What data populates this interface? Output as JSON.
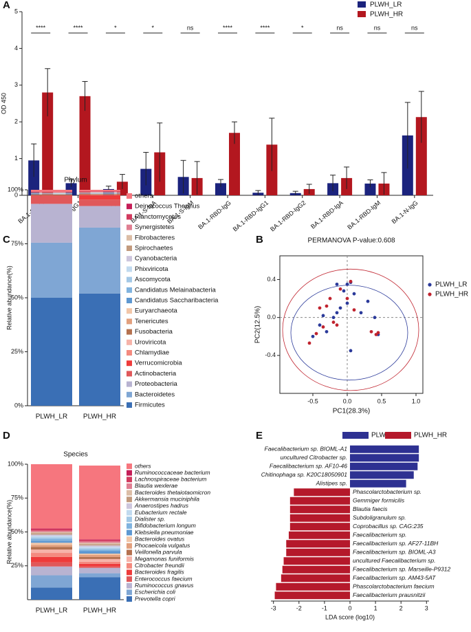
{
  "chart_data": [
    {
      "type": "bar",
      "panel": "A",
      "ylabel": "OD 450",
      "categories": [
        "BA.1-S-IgG",
        "BA.1-S-IgG1",
        "BA.1-S-IgG2",
        "BA.1-S-IgA",
        "BA.1-S-IgM",
        "BA.1-RBD-IgG",
        "BA.1-RBD-IgG1",
        "BA.1-RBD-IgG2",
        "BA.1-RBD-IgA",
        "BA.1-RBD-IgM",
        "BA.1-N-IgG"
      ],
      "ylim": [
        0,
        5
      ],
      "yticks": [
        0,
        1,
        2,
        3,
        4,
        5
      ],
      "legend": "upper right",
      "series": [
        {
          "name": "PLWH_LR",
          "color": "#1b237d",
          "values": [
            0.95,
            0.33,
            0.17,
            0.72,
            0.5,
            0.33,
            0.07,
            0.06,
            0.33,
            0.32,
            1.63
          ],
          "errors": [
            0.45,
            0.1,
            0.08,
            0.45,
            0.45,
            0.1,
            0.06,
            0.05,
            0.22,
            0.1,
            0.9
          ]
        },
        {
          "name": "PLWH_HR",
          "color": "#b3171f",
          "values": [
            2.8,
            2.7,
            0.37,
            1.17,
            0.47,
            1.7,
            1.38,
            0.17,
            0.47,
            0.32,
            2.13
          ],
          "errors": [
            0.65,
            0.4,
            0.2,
            0.8,
            0.45,
            0.3,
            0.72,
            0.13,
            0.3,
            0.3,
            0.7
          ]
        }
      ],
      "annotations": [
        "****",
        "****",
        "*",
        "*",
        "ns",
        "****",
        "****",
        "*",
        "ns",
        "ns",
        "ns"
      ]
    },
    {
      "type": "stacked_bar",
      "panel": "C",
      "title": "Phylum",
      "ylabel": "Relative abundance(%)",
      "categories": [
        "PLWH_LR",
        "PLWH_HR"
      ],
      "ylim": [
        0,
        100
      ],
      "yticks": [
        {
          "value": 0,
          "label": "0%"
        },
        {
          "value": 25,
          "label": "25%"
        },
        {
          "value": 50,
          "label": "50%"
        },
        {
          "value": 75,
          "label": "75%"
        },
        {
          "value": 100,
          "label": "100%"
        }
      ],
      "series": [
        {
          "name": "Firmicutes",
          "color": "#3a6fb5",
          "values": [
            50,
            52
          ]
        },
        {
          "name": "Bacteroidetes",
          "color": "#7fa6d4",
          "values": [
            25.5,
            30.5
          ]
        },
        {
          "name": "Proteobacteria",
          "color": "#b8b3d1",
          "values": [
            18,
            10
          ]
        },
        {
          "name": "Actinobacteria",
          "color": "#e0585a",
          "values": [
            3.5,
            3
          ]
        },
        {
          "name": "Verrucomicrobia",
          "color": "#ee3b3b",
          "values": [
            0.3,
            2
          ]
        },
        {
          "name": "Chlamydiae",
          "color": "#f48a7f",
          "values": [
            0.1,
            0.1
          ]
        },
        {
          "name": "Uroviricota",
          "color": "#f6b3a9",
          "values": [
            0.1,
            0.1
          ]
        },
        {
          "name": "Fusobacteria",
          "color": "#b5714f",
          "values": [
            0.3,
            0.3
          ]
        },
        {
          "name": "Tenericutes",
          "color": "#e2a07e",
          "values": [
            0.1,
            0.1
          ]
        },
        {
          "name": "Euryarchaeota",
          "color": "#f2c6a8",
          "values": [
            0.1,
            0.1
          ]
        },
        {
          "name": "Candidatus Saccharibacteria",
          "color": "#5e98d1",
          "values": [
            0.1,
            0.1
          ]
        },
        {
          "name": "Candidatus Melainabacteria",
          "color": "#80b3df",
          "values": [
            0.1,
            0.1
          ]
        },
        {
          "name": "Ascomycota",
          "color": "#a3c8e6",
          "values": [
            0.1,
            0.1
          ]
        },
        {
          "name": "Phixviricota",
          "color": "#c1daef",
          "values": [
            0.1,
            0.1
          ]
        },
        {
          "name": "Cyanobacteria",
          "color": "#cdc6dd",
          "values": [
            0.1,
            0.1
          ]
        },
        {
          "name": "Spirochaetes",
          "color": "#c29a7e",
          "values": [
            0.1,
            0.1
          ]
        },
        {
          "name": "Fibrobacteres",
          "color": "#dcbda6",
          "values": [
            0.1,
            0.1
          ]
        },
        {
          "name": "Synergistetes",
          "color": "#e07f92",
          "values": [
            0.1,
            0.1
          ]
        },
        {
          "name": "Planctomycetes",
          "color": "#d23a5e",
          "values": [
            0.1,
            0.1
          ]
        },
        {
          "name": "Deinococcus Thermus",
          "color": "#c51d57",
          "values": [
            0.1,
            0.1
          ]
        },
        {
          "name": "others",
          "color": "#f6767e",
          "values": [
            1.0,
            0.8
          ]
        }
      ]
    },
    {
      "type": "scatter",
      "panel": "B",
      "title": "PERMANOVA P-value:0.608",
      "xlabel": "PC1(28.3%)",
      "ylabel": "PC2(12.5%)",
      "xlim": [
        -0.98,
        1.1
      ],
      "ylim": [
        -0.8,
        0.65
      ],
      "xticks": [
        -0.5,
        {
          "value": 0,
          "label": "0.0"
        },
        0.5,
        {
          "value": 1,
          "label": "1.0"
        }
      ],
      "yticks": [
        -0.4,
        {
          "value": 0,
          "label": "0.0"
        },
        0.4
      ],
      "legend": "right",
      "series": [
        {
          "name": "PLWH_LR",
          "color": "#2b3a9a",
          "x": [
            0.0,
            0.05,
            -0.15,
            -0.05,
            0.1,
            -0.2,
            -0.35,
            -0.4,
            -0.5,
            0.3,
            0.4,
            0.45,
            0.05,
            -0.15,
            -0.1,
            -0.3,
            0.2,
            0.0
          ],
          "values": [
            0.35,
            0.37,
            0.35,
            0.28,
            0.25,
            0.0,
            0.02,
            -0.08,
            -0.2,
            0.17,
            0.0,
            -0.18,
            -0.35,
            0.05,
            0.1,
            -0.15,
            0.05,
            0.15
          ],
          "ellipse": {
            "cx": 0.03,
            "cy": -0.16,
            "rx": 0.85,
            "ry": 0.5
          }
        },
        {
          "name": "PLWH_HR",
          "color": "#c0232e",
          "x": [
            0.05,
            -0.1,
            -0.25,
            -0.3,
            -0.4,
            -0.2,
            -0.45,
            -0.55,
            0.35,
            0.42,
            0.45,
            -0.15,
            0.0,
            -0.35,
            0.1
          ],
          "values": [
            0.38,
            0.3,
            0.2,
            0.12,
            0.1,
            -0.05,
            -0.17,
            -0.27,
            -0.15,
            -0.18,
            -0.16,
            -0.08,
            0.2,
            -0.1,
            0.08
          ],
          "ellipse": {
            "cx": 0.05,
            "cy": -0.13,
            "rx": 0.99,
            "ry": 0.64
          }
        }
      ]
    },
    {
      "type": "stacked_bar",
      "panel": "D",
      "title": "Species",
      "ylabel": "Relative abundance(%)",
      "categories": [
        "PLWH_LR",
        "PLWH_HR"
      ],
      "ylim": [
        0,
        100
      ],
      "yticks": [
        {
          "value": 25,
          "label": "25%"
        },
        {
          "value": 50,
          "label": "50%"
        },
        {
          "value": 75,
          "label": "75%"
        },
        {
          "value": 100,
          "label": "100%"
        }
      ],
      "series": [
        {
          "name": "Prevotella copri",
          "color": "#3a6fb5",
          "values": [
            9,
            16.5
          ]
        },
        {
          "name": "Escherichia coli",
          "color": "#7fa6d4",
          "values": [
            9,
            3
          ]
        },
        {
          "name": "Ruminococcus gnavus",
          "color": "#b8b3d1",
          "values": [
            6.5,
            4
          ]
        },
        {
          "name": "Enterococcus faecium",
          "color": "#e0585a",
          "values": [
            3,
            1
          ]
        },
        {
          "name": "Bacteroides fragilis",
          "color": "#ee3b3b",
          "values": [
            4,
            2
          ]
        },
        {
          "name": "Citrobacter freundii",
          "color": "#f48a7f",
          "values": [
            3,
            1.5
          ]
        },
        {
          "name": "Megamonas funiformis",
          "color": "#f6b3a9",
          "values": [
            2.5,
            2
          ]
        },
        {
          "name": "Veillonella parvula",
          "color": "#b5714f",
          "values": [
            2,
            1.5
          ]
        },
        {
          "name": "Phocaeicola vulgatus",
          "color": "#e2a07e",
          "values": [
            1.5,
            1.5
          ]
        },
        {
          "name": "Bacteroides ovatus",
          "color": "#f2c6a8",
          "values": [
            1.5,
            1
          ]
        },
        {
          "name": "Klebsiella pneumoniae",
          "color": "#5e98d1",
          "values": [
            1.5,
            2
          ]
        },
        {
          "name": "Bifidobacterium longum",
          "color": "#80b3df",
          "values": [
            1.5,
            1
          ]
        },
        {
          "name": "Dialister sp.",
          "color": "#a3c8e6",
          "values": [
            1,
            1
          ]
        },
        {
          "name": "Eubacterium rectale",
          "color": "#c1daef",
          "values": [
            1,
            1
          ]
        },
        {
          "name": "Anaerostipes hadrus",
          "color": "#cdc6dd",
          "values": [
            1,
            1
          ]
        },
        {
          "name": "Akkermansia muciniphila",
          "color": "#c29a7e",
          "values": [
            1,
            1
          ]
        },
        {
          "name": "Bacteroides thetaiotaomicron",
          "color": "#dcbda6",
          "values": [
            1,
            1
          ]
        },
        {
          "name": "Blautia wexlerae",
          "color": "#e07f92",
          "values": [
            1,
            1
          ]
        },
        {
          "name": "Lachnospiraceae bacterium",
          "color": "#d23a5e",
          "values": [
            1,
            1
          ]
        },
        {
          "name": "Ruminococcaceae bacterium",
          "color": "#c51d57",
          "values": [
            0.5,
            0.5
          ]
        },
        {
          "name": "others",
          "color": "#f6767e",
          "values": [
            47.5,
            54.5
          ]
        }
      ]
    },
    {
      "type": "diverging_bar",
      "panel": "E",
      "xlabel": "LDA score (log10)",
      "categories": [
        "Faecalibacterium sp. BIOML-A1",
        "uncultured Citrobacter sp.",
        "Faecalibacterium sp. AF10-46",
        "Chitinophaga sp. K20C18050901",
        "Alistipes sp.",
        "Phascolarctobacterium sp.",
        "Gemmiger formicilis",
        "Blautia faecis",
        "Subdoligranulum sp.",
        "Coprobacillus sp. CAG:235",
        "Faecalibacterium sp.",
        "Faecalibacterium sp. AF27-11BH",
        "Faecalibacterium sp. BIOML-A3",
        "uncultured Faecalibacterium sp.",
        "Faecalibacterium sp. Marseille-P9312",
        "Faecalibacterium sp. AM43-5AT",
        "Phascolarctobacterium faecium",
        "Faecalibacterium prausnitzii"
      ],
      "xlim": [
        -3.1,
        3.1
      ],
      "xticks": [
        -3,
        -2,
        -1,
        0,
        1,
        2,
        3
      ],
      "legend": "top",
      "series": [
        {
          "name": "PLWH_LR",
          "color": "#2e3192",
          "values": [
            2.7,
            2.7,
            2.65,
            2.5,
            2.2,
            null,
            null,
            null,
            null,
            null,
            null,
            null,
            null,
            null,
            null,
            null,
            null,
            null
          ]
        },
        {
          "name": "PLWH_HR",
          "color": "#b5192b",
          "values": [
            null,
            null,
            null,
            null,
            null,
            -2.2,
            -2.35,
            -2.35,
            -2.35,
            -2.35,
            -2.4,
            -2.5,
            -2.5,
            -2.6,
            -2.65,
            -2.7,
            -2.9,
            -2.95
          ]
        }
      ]
    }
  ]
}
